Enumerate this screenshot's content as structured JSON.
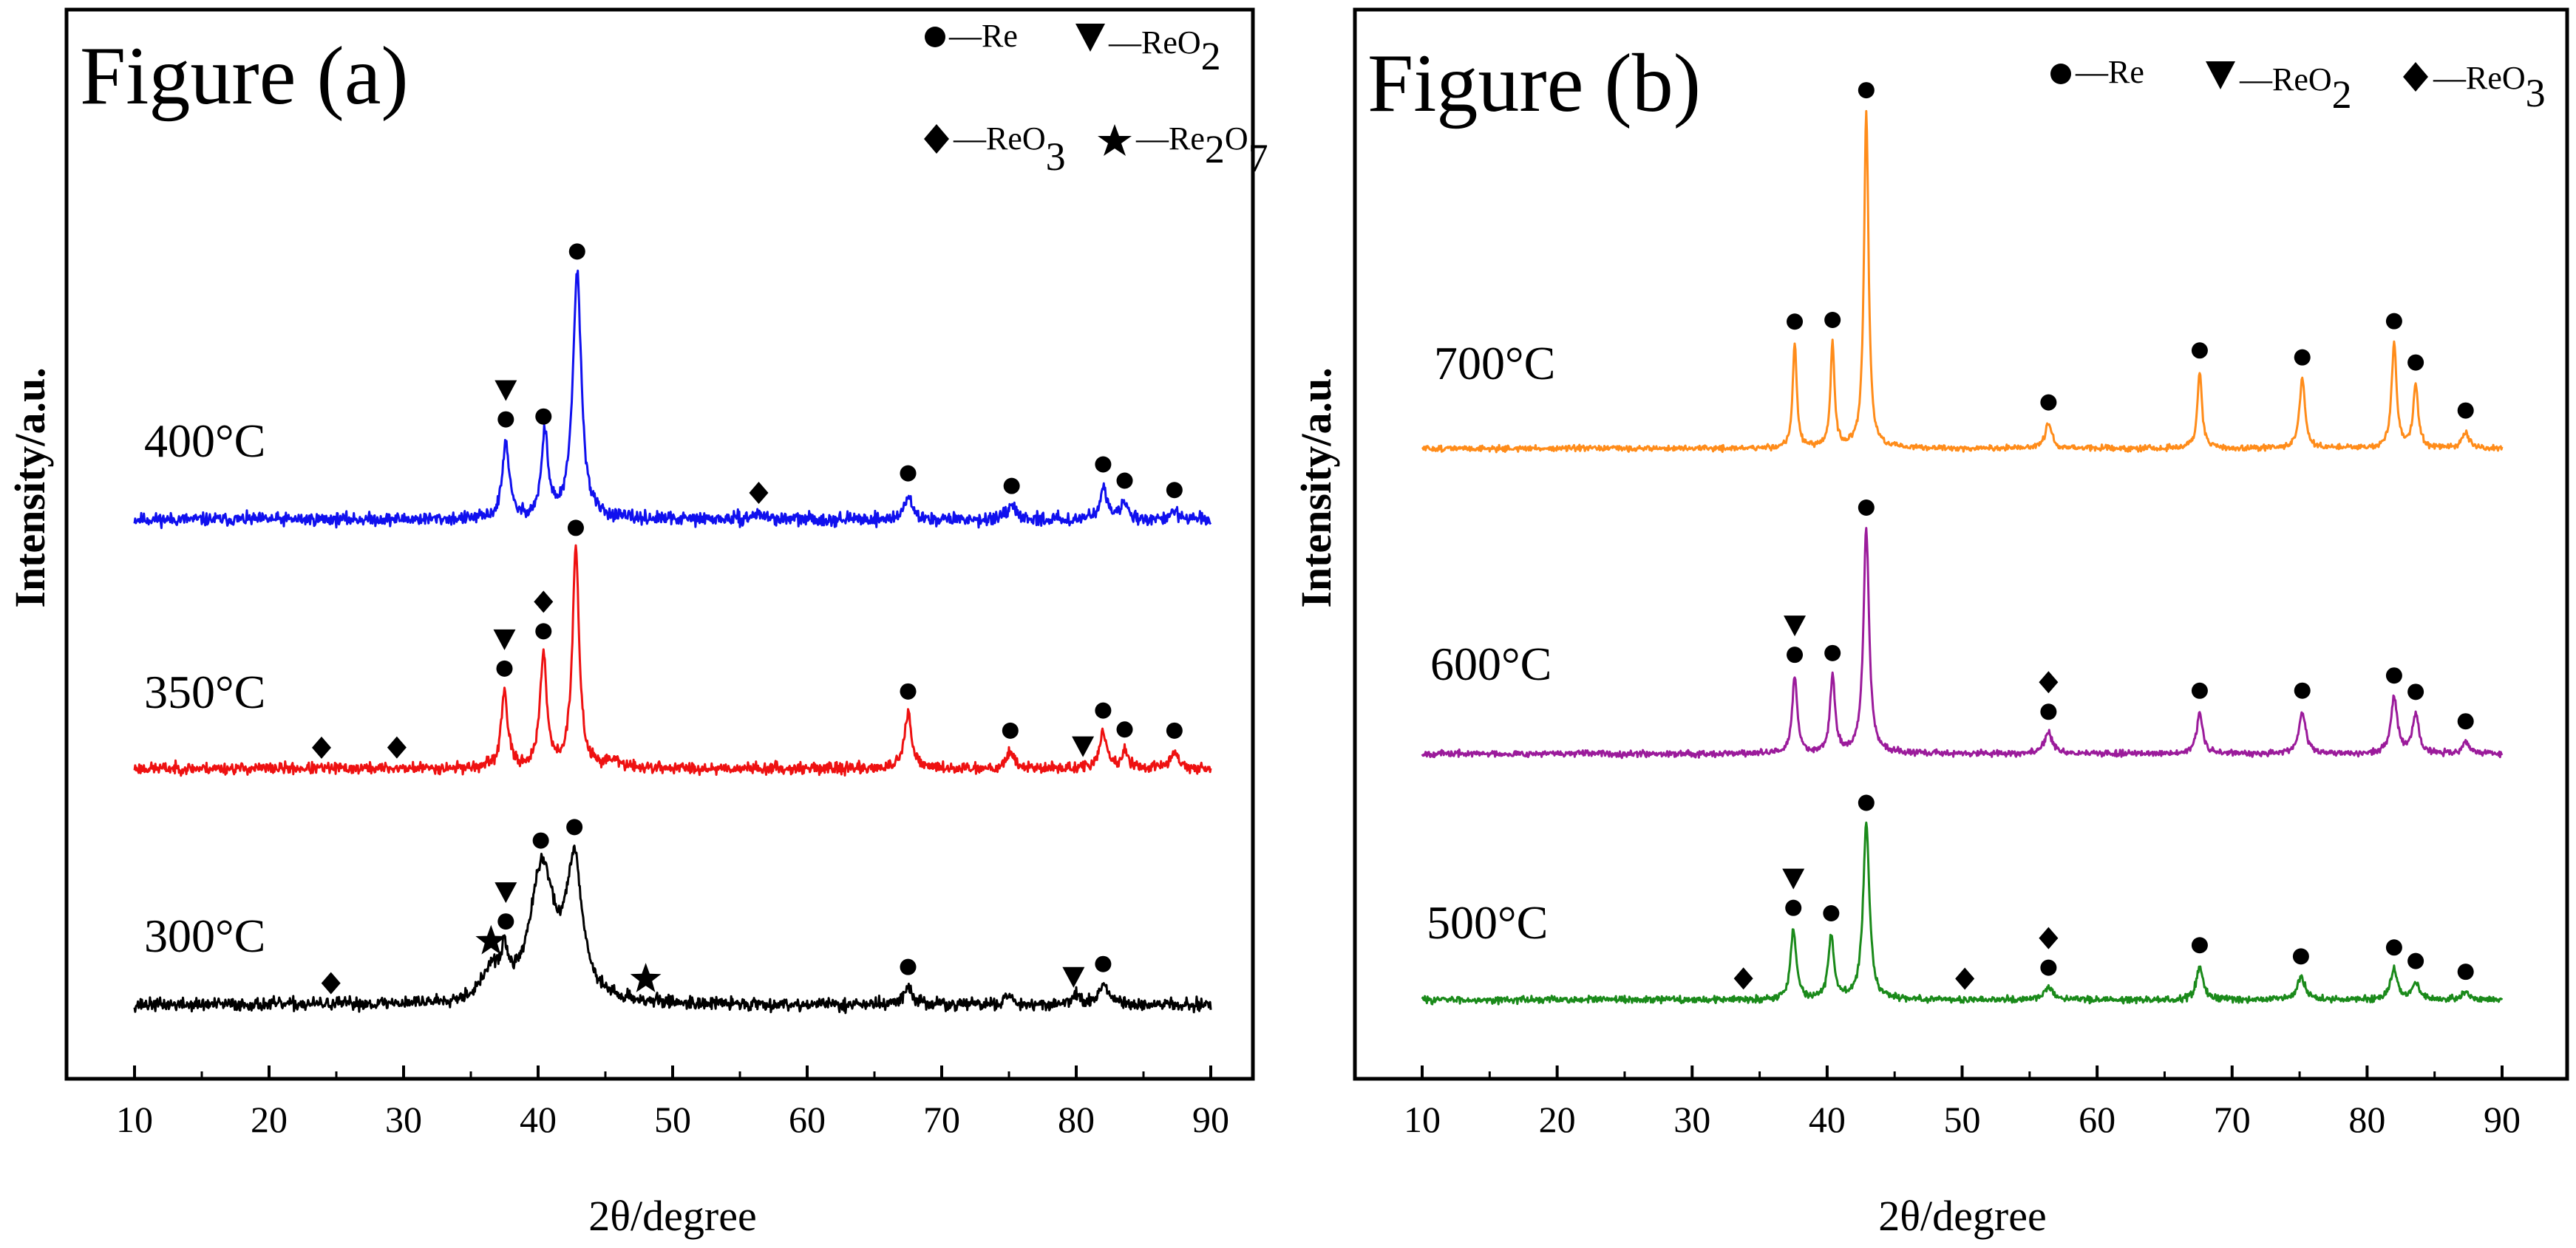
{
  "chart_data": [
    {
      "type": "line",
      "panel": "a",
      "title": "Figure (a)",
      "xlabel": "2θ/degree",
      "ylabel": "Intensity/a.u.",
      "xlim": [
        5,
        95
      ],
      "x_ticks": [
        "10",
        "20",
        "30",
        "40",
        "50",
        "60",
        "70",
        "80",
        "90"
      ],
      "legend": [
        {
          "symbol": "circle",
          "text": "—Re"
        },
        {
          "symbol": "triangle",
          "text": "—ReO",
          "sub": "2"
        },
        {
          "symbol": "diamond",
          "text": "—ReO",
          "sub": "3"
        },
        {
          "symbol": "star",
          "text": "—Re",
          "sub": "2",
          "text2": "O",
          "sub2": "7"
        }
      ],
      "series": [
        {
          "name": "400°C",
          "color": "#1010ee",
          "noise": 0.045,
          "seed": 11,
          "peaks": [
            [
              37.6,
              0.55,
              0.3
            ],
            [
              40.5,
              0.6,
              0.3
            ],
            [
              42.9,
              1.75,
              0.38
            ],
            [
              56.4,
              0.04,
              0.5
            ],
            [
              67.5,
              0.18,
              0.3
            ],
            [
              75.2,
              0.09,
              0.35
            ],
            [
              82.0,
              0.24,
              0.3
            ],
            [
              83.6,
              0.12,
              0.3
            ],
            [
              87.3,
              0.06,
              0.3
            ]
          ],
          "markers": [
            {
              "x": 37.6,
              "symbols": [
                "circle",
                "triangle"
              ]
            },
            {
              "x": 40.4,
              "symbols": [
                "circle"
              ]
            },
            {
              "x": 42.9,
              "symbols": [
                "circle"
              ]
            },
            {
              "x": 56.4,
              "symbols": [
                "diamond"
              ]
            },
            {
              "x": 67.5,
              "symbols": [
                "circle"
              ]
            },
            {
              "x": 75.2,
              "symbols": [
                "circle"
              ]
            },
            {
              "x": 82.0,
              "symbols": [
                "circle"
              ]
            },
            {
              "x": 83.6,
              "symbols": [
                "circle"
              ]
            },
            {
              "x": 87.3,
              "symbols": [
                "circle"
              ]
            }
          ]
        },
        {
          "name": "350°C",
          "color": "#ee1111",
          "noise": 0.04,
          "seed": 23,
          "peaks": [
            [
              37.5,
              0.55,
              0.28
            ],
            [
              40.4,
              0.8,
              0.3
            ],
            [
              42.8,
              1.55,
              0.3
            ],
            [
              45.5,
              0.05,
              0.6
            ],
            [
              67.5,
              0.4,
              0.3
            ],
            [
              75.1,
              0.12,
              0.35
            ],
            [
              82.0,
              0.26,
              0.3
            ],
            [
              83.6,
              0.12,
              0.3
            ],
            [
              87.3,
              0.12,
              0.35
            ]
          ],
          "markers": [
            {
              "x": 23.9,
              "symbols": [
                "diamond"
              ]
            },
            {
              "x": 29.5,
              "symbols": [
                "diamond"
              ]
            },
            {
              "x": 37.5,
              "symbols": [
                "circle",
                "triangle"
              ]
            },
            {
              "x": 40.4,
              "symbols": [
                "circle",
                "diamond"
              ]
            },
            {
              "x": 42.8,
              "symbols": [
                "circle"
              ]
            },
            {
              "x": 67.5,
              "symbols": [
                "circle"
              ]
            },
            {
              "x": 75.1,
              "symbols": [
                "circle"
              ]
            },
            {
              "x": 80.5,
              "symbols": [
                "triangle"
              ]
            },
            {
              "x": 82.0,
              "symbols": [
                "circle"
              ]
            },
            {
              "x": 83.6,
              "symbols": [
                "circle"
              ]
            },
            {
              "x": 87.3,
              "symbols": [
                "circle"
              ]
            }
          ]
        },
        {
          "name": "300°C",
          "color": "#000000",
          "noise": 0.045,
          "seed": 37,
          "peaks": [
            [
              37.5,
              0.25,
              0.3
            ],
            [
              40.3,
              0.95,
              1.1
            ],
            [
              42.7,
              0.95,
              0.7
            ],
            [
              36.5,
              0.2,
              0.8
            ],
            [
              67.5,
              0.12,
              0.4
            ],
            [
              75.0,
              0.06,
              0.4
            ],
            [
              82.0,
              0.14,
              0.4
            ],
            [
              80.0,
              0.06,
              0.4
            ]
          ],
          "markers": [
            {
              "x": 24.6,
              "symbols": [
                "diamond"
              ]
            },
            {
              "x": 36.5,
              "symbols": [
                "star"
              ]
            },
            {
              "x": 37.6,
              "symbols": [
                "circle",
                "triangle"
              ]
            },
            {
              "x": 40.2,
              "symbols": [
                "circle"
              ]
            },
            {
              "x": 42.7,
              "symbols": [
                "circle"
              ]
            },
            {
              "x": 48.0,
              "symbols": [
                "star"
              ]
            },
            {
              "x": 67.5,
              "symbols": [
                "circle"
              ]
            },
            {
              "x": 79.8,
              "symbols": [
                "triangle"
              ]
            },
            {
              "x": 82.0,
              "symbols": [
                "circle"
              ]
            }
          ]
        }
      ]
    },
    {
      "type": "line",
      "panel": "b",
      "title": "Figure (b)",
      "xlabel": "2θ/degree",
      "ylabel": "Intensity/a.u.",
      "xlim": [
        5,
        95
      ],
      "x_ticks": [
        "10",
        "20",
        "30",
        "40",
        "50",
        "60",
        "70",
        "80",
        "90"
      ],
      "legend": [
        {
          "symbol": "circle",
          "text": "—Re"
        },
        {
          "symbol": "triangle",
          "text": "—ReO",
          "sub": "2"
        },
        {
          "symbol": "diamond",
          "text": "—ReO",
          "sub": "3"
        }
      ],
      "series": [
        {
          "name": "700°C",
          "color": "#ff8c1a",
          "noise": 0.02,
          "seed": 51,
          "peaks": [
            [
              37.6,
              0.75,
              0.18
            ],
            [
              40.4,
              0.75,
              0.18
            ],
            [
              42.9,
              2.4,
              0.2
            ],
            [
              56.4,
              0.18,
              0.3
            ],
            [
              67.6,
              0.55,
              0.2
            ],
            [
              75.2,
              0.5,
              0.25
            ],
            [
              82.0,
              0.75,
              0.22
            ],
            [
              83.6,
              0.45,
              0.22
            ],
            [
              87.3,
              0.12,
              0.3
            ]
          ],
          "markers": [
            {
              "x": 37.6,
              "symbols": [
                "circle"
              ]
            },
            {
              "x": 40.4,
              "symbols": [
                "circle"
              ]
            },
            {
              "x": 42.9,
              "symbols": [
                "circle"
              ]
            },
            {
              "x": 56.4,
              "symbols": [
                "circle"
              ]
            },
            {
              "x": 67.6,
              "symbols": [
                "circle"
              ]
            },
            {
              "x": 75.2,
              "symbols": [
                "circle"
              ]
            },
            {
              "x": 82.0,
              "symbols": [
                "circle"
              ]
            },
            {
              "x": 83.6,
              "symbols": [
                "circle"
              ]
            },
            {
              "x": 87.3,
              "symbols": [
                "circle"
              ]
            }
          ]
        },
        {
          "name": "600°C",
          "color": "#9b1b9b",
          "noise": 0.022,
          "seed": 67,
          "peaks": [
            [
              37.6,
              0.55,
              0.22
            ],
            [
              40.4,
              0.55,
              0.22
            ],
            [
              42.9,
              1.6,
              0.25
            ],
            [
              56.4,
              0.15,
              0.35
            ],
            [
              67.6,
              0.3,
              0.25
            ],
            [
              75.2,
              0.3,
              0.3
            ],
            [
              82.0,
              0.4,
              0.28
            ],
            [
              83.6,
              0.28,
              0.28
            ],
            [
              87.3,
              0.08,
              0.3
            ]
          ],
          "markers": [
            {
              "x": 37.6,
              "symbols": [
                "circle",
                "triangle"
              ]
            },
            {
              "x": 40.4,
              "symbols": [
                "circle"
              ]
            },
            {
              "x": 42.9,
              "symbols": [
                "circle"
              ]
            },
            {
              "x": 56.4,
              "symbols": [
                "circle",
                "diamond"
              ]
            },
            {
              "x": 67.6,
              "symbols": [
                "circle"
              ]
            },
            {
              "x": 75.2,
              "symbols": [
                "circle"
              ]
            },
            {
              "x": 82.0,
              "symbols": [
                "circle"
              ]
            },
            {
              "x": 83.6,
              "symbols": [
                "circle"
              ]
            },
            {
              "x": 87.3,
              "symbols": [
                "circle"
              ]
            }
          ]
        },
        {
          "name": "500°C",
          "color": "#1a8a1a",
          "noise": 0.024,
          "seed": 83,
          "peaks": [
            [
              37.5,
              0.5,
              0.25
            ],
            [
              40.3,
              0.45,
              0.25
            ],
            [
              42.9,
              1.25,
              0.28
            ],
            [
              56.4,
              0.08,
              0.4
            ],
            [
              67.6,
              0.24,
              0.28
            ],
            [
              75.1,
              0.16,
              0.35
            ],
            [
              82.0,
              0.22,
              0.3
            ],
            [
              83.6,
              0.12,
              0.3
            ],
            [
              87.3,
              0.05,
              0.3
            ]
          ],
          "markers": [
            {
              "x": 33.8,
              "symbols": [
                "diamond"
              ]
            },
            {
              "x": 37.5,
              "symbols": [
                "circle",
                "triangle"
              ]
            },
            {
              "x": 40.3,
              "symbols": [
                "circle"
              ]
            },
            {
              "x": 42.9,
              "symbols": [
                "circle"
              ]
            },
            {
              "x": 50.2,
              "symbols": [
                "diamond"
              ]
            },
            {
              "x": 56.4,
              "symbols": [
                "circle",
                "diamond"
              ]
            },
            {
              "x": 67.6,
              "symbols": [
                "circle"
              ]
            },
            {
              "x": 75.1,
              "symbols": [
                "circle"
              ]
            },
            {
              "x": 82.0,
              "symbols": [
                "circle"
              ]
            },
            {
              "x": 83.6,
              "symbols": [
                "circle"
              ]
            },
            {
              "x": 87.3,
              "symbols": [
                "circle"
              ]
            }
          ]
        }
      ]
    }
  ]
}
